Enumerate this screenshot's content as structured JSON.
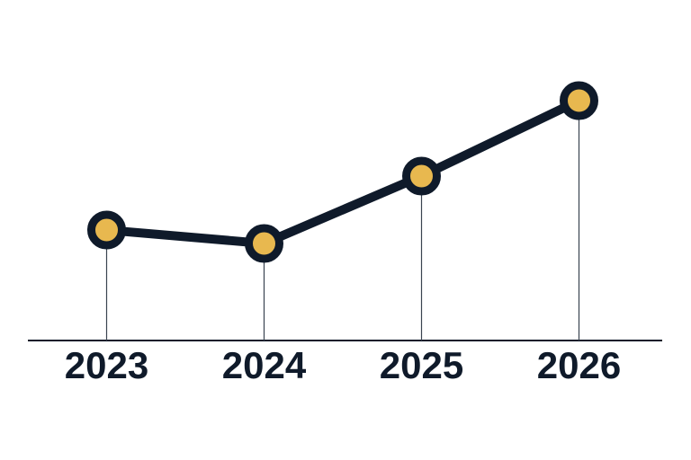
{
  "chart_data": {
    "type": "line",
    "categories": [
      "2023",
      "2024",
      "2025",
      "2026"
    ],
    "values": [
      41,
      36,
      61,
      89
    ],
    "ylim": [
      0,
      100
    ],
    "line_color": "#0f1a2a",
    "marker_color": "#e8b84f",
    "drop_lines": true
  }
}
